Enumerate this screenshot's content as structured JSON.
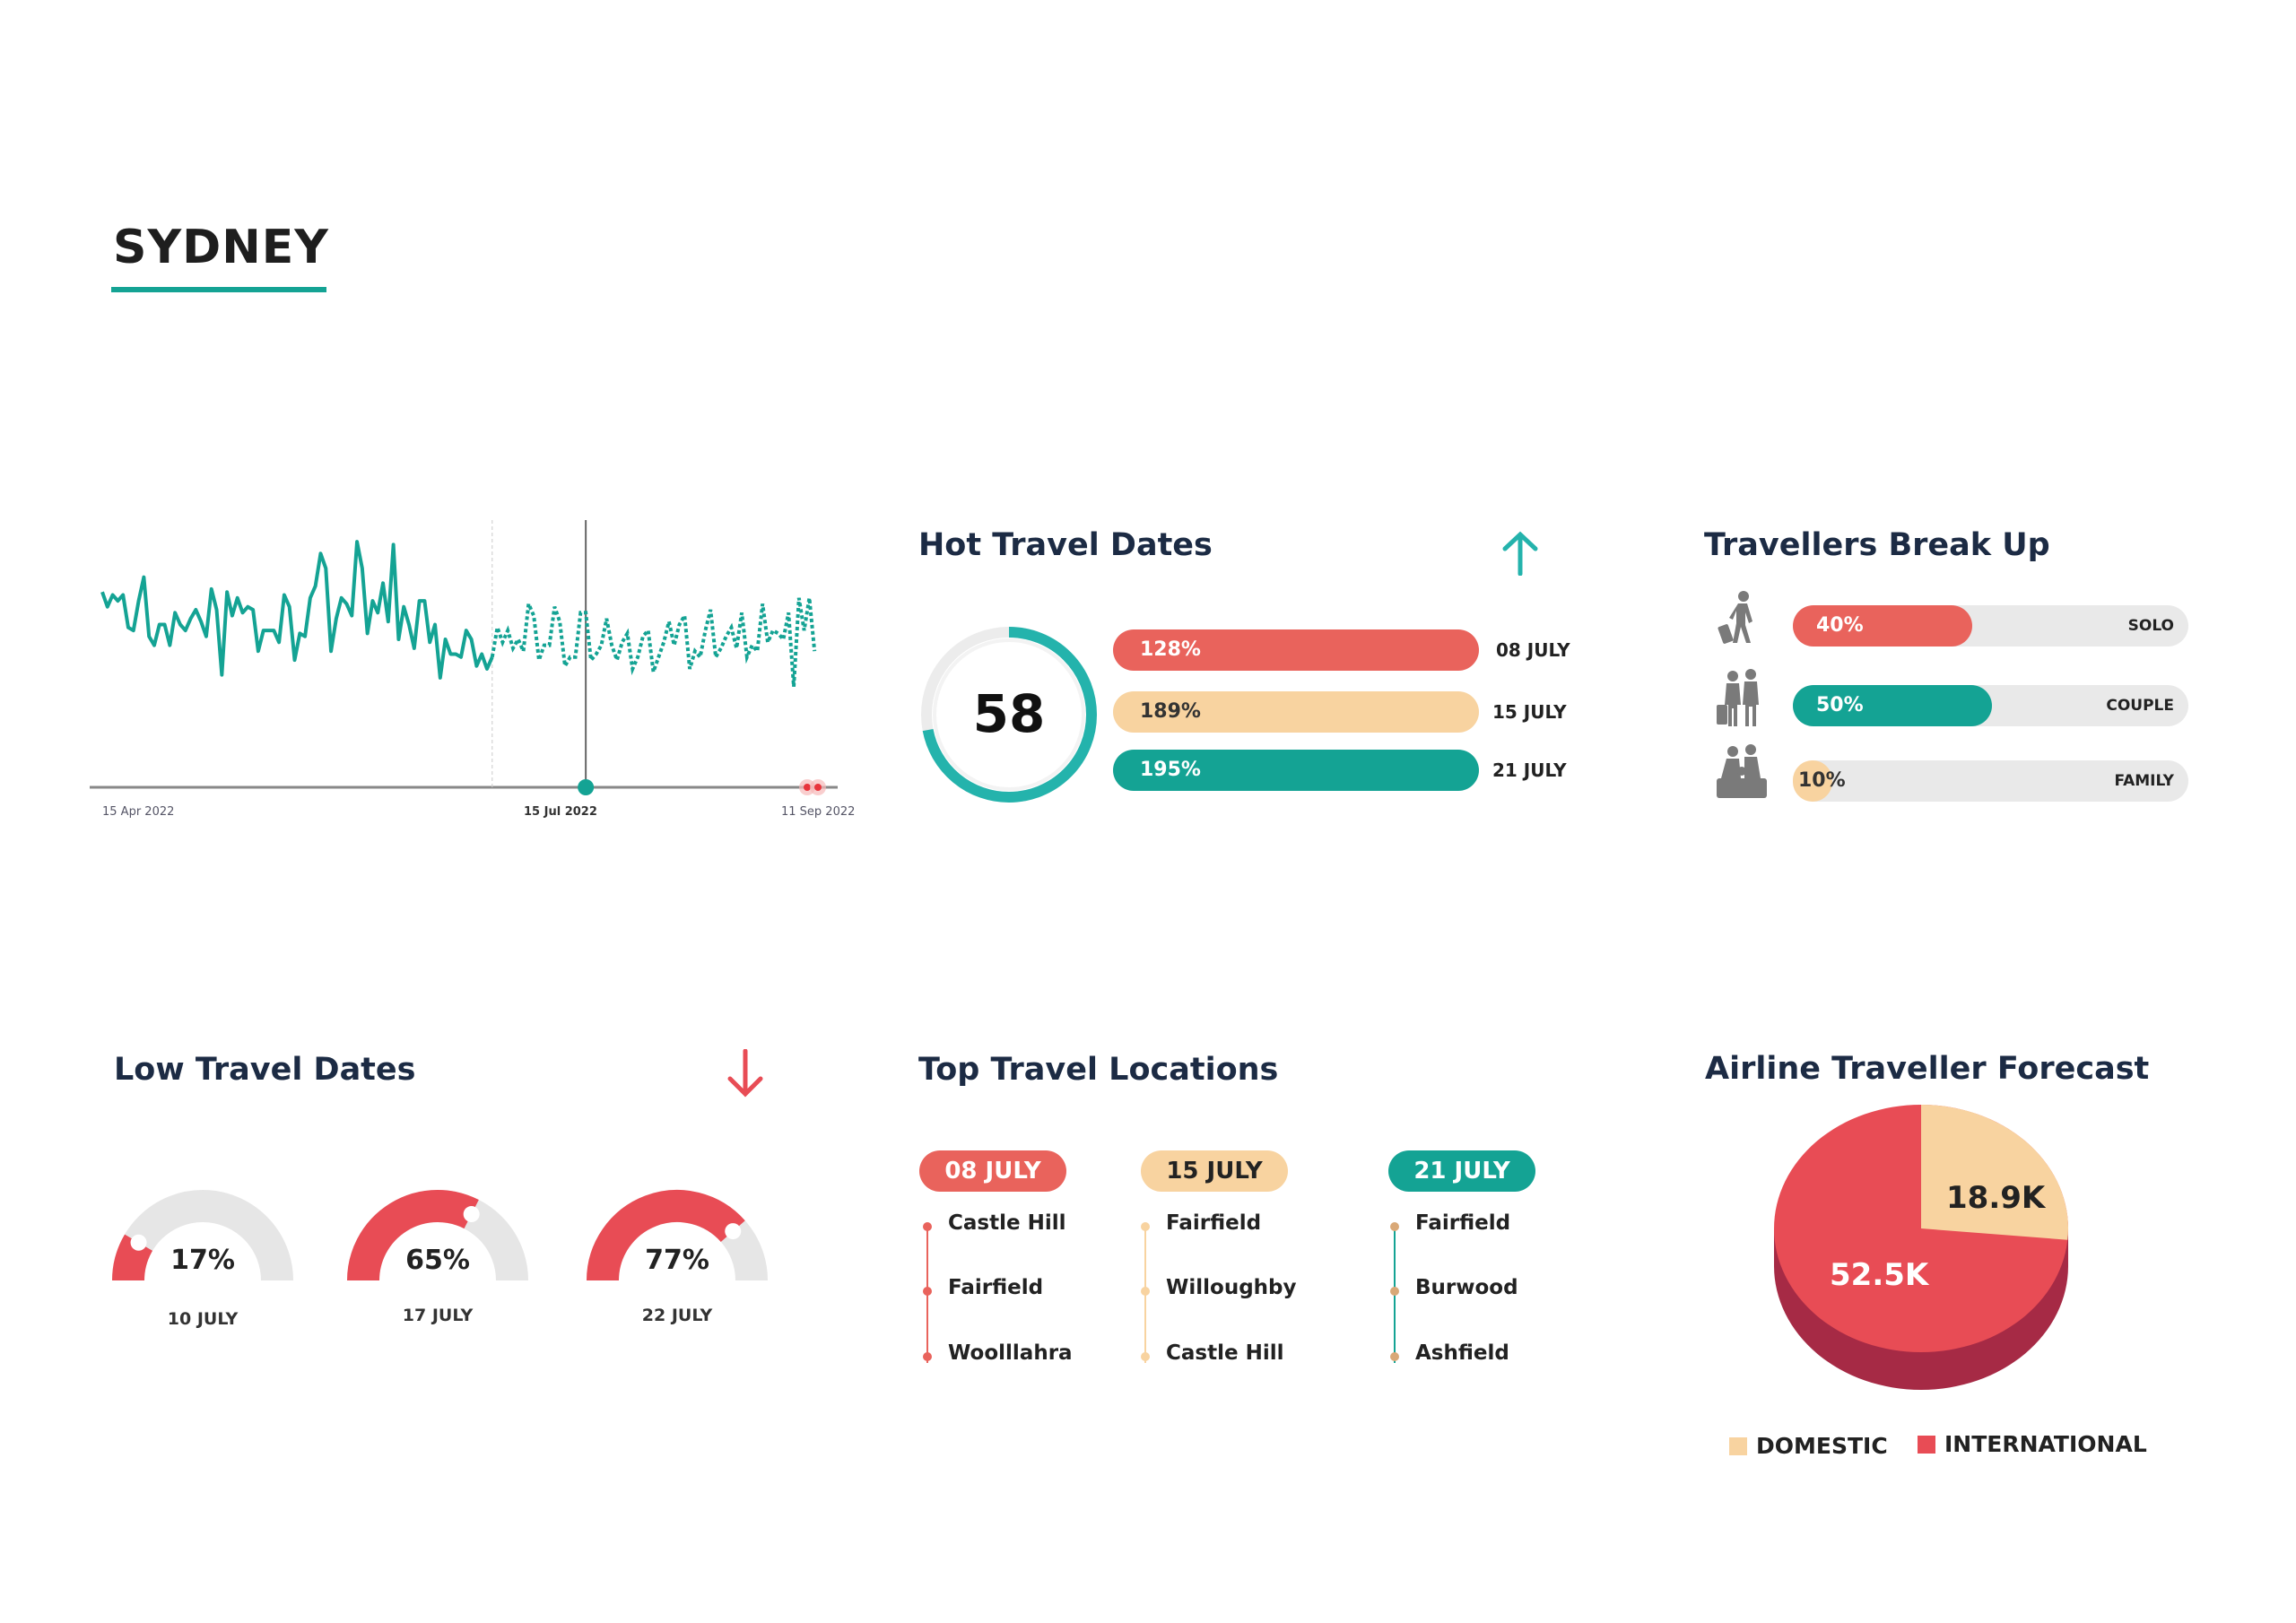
{
  "page": {
    "title": "SYDNEY"
  },
  "colors": {
    "teal": "#14a394",
    "red": "#e9635c",
    "peach": "#f8d3a0",
    "navy": "#1c2b44",
    "pie_red": "#e84c55",
    "pie_dark": "#a62a45",
    "track": "#e9e9e9"
  },
  "chart_data": [
    {
      "type": "line",
      "x_labels": [
        "15 Apr 2022",
        "15 Jul 2022",
        "11 Sep 2022"
      ],
      "highlight_label": "15 Jul 2022",
      "grid": false,
      "series": [
        {
          "style": "solid",
          "values": [
            66,
            61,
            65,
            63,
            65,
            54,
            53,
            63,
            71,
            51,
            48,
            55,
            55,
            48,
            59,
            55,
            53,
            57,
            60,
            56,
            51,
            67,
            60,
            38,
            66,
            58,
            64,
            59,
            61,
            60,
            46,
            53,
            53,
            53,
            49,
            65,
            61,
            43,
            52,
            51,
            64,
            68,
            79,
            74,
            46,
            57,
            64,
            62,
            58,
            83,
            74,
            52,
            63,
            59,
            69,
            56,
            82,
            50,
            61,
            55,
            47,
            63,
            63,
            49,
            55,
            37,
            50,
            45,
            45,
            44,
            53,
            50,
            41,
            45,
            40,
            44
          ]
        },
        {
          "style": "dashed",
          "values": [
            44,
            54,
            49,
            53,
            47,
            50,
            46,
            62,
            58,
            43,
            48,
            48,
            61,
            56,
            41,
            44,
            44,
            59,
            59,
            43,
            45,
            48,
            57,
            48,
            43,
            49,
            52,
            40,
            44,
            51,
            53,
            39,
            44,
            49,
            56,
            48,
            55,
            58,
            40,
            46,
            44,
            53,
            60,
            44,
            47,
            51,
            54,
            47,
            59,
            44,
            48,
            46,
            62,
            49,
            53,
            52,
            50,
            59,
            34,
            64,
            53,
            64,
            46
          ]
        }
      ]
    },
    {
      "type": "pie",
      "title": "Airline Traveller Forecast",
      "slices": [
        {
          "name": "DOMESTIC",
          "value": 18.9,
          "label": "18.9K",
          "color": "#f8d3a0"
        },
        {
          "name": "INTERNATIONAL",
          "value": 52.5,
          "label": "52.5K",
          "color": "#e84c55"
        }
      ],
      "legend": "bottom"
    }
  ],
  "hot": {
    "title": "Hot Travel Dates",
    "arrow_icon": "arrow-up-icon",
    "ring_value": "58",
    "ring_fill": 0.72,
    "bars": [
      {
        "pct": "128%",
        "date": "08 JULY",
        "color": "#e9635c"
      },
      {
        "pct": "189%",
        "date": "15 JULY",
        "color": "#f8d3a0"
      },
      {
        "pct": "195%",
        "date": "21 JULY",
        "color": "#14a394"
      }
    ]
  },
  "travellers": {
    "title": "Travellers Break Up",
    "items": [
      {
        "label": "SOLO",
        "pct": "40%",
        "fraction": 0.4,
        "color": "#e9635c",
        "icon": "solo-traveller-icon"
      },
      {
        "label": "COUPLE",
        "pct": "50%",
        "fraction": 0.5,
        "color": "#14a394",
        "icon": "couple-traveller-icon"
      },
      {
        "label": "FAMILY",
        "pct": "10%",
        "fraction": 0.1,
        "color": "#f8d3a0",
        "icon": "family-traveller-icon"
      }
    ]
  },
  "low": {
    "title": "Low Travel Dates",
    "arrow_icon": "arrow-down-icon",
    "gauges": [
      {
        "pct": "17%",
        "fraction": 0.17,
        "date": "10 JULY"
      },
      {
        "pct": "65%",
        "fraction": 0.65,
        "date": "17 JULY"
      },
      {
        "pct": "77%",
        "fraction": 0.77,
        "date": "22 JULY"
      }
    ]
  },
  "locations": {
    "title": "Top Travel Locations",
    "columns": [
      {
        "date": "08 JULY",
        "color": "#e9635c",
        "text_color": "#ffffff",
        "places": [
          "Castle Hill",
          "Fairfield",
          "Woolllahra"
        ]
      },
      {
        "date": "15 JULY",
        "color": "#f8d3a0",
        "text_color": "#222222",
        "places": [
          "Fairfield",
          "Willoughby",
          "Castle Hill"
        ]
      },
      {
        "date": "21 JULY",
        "color": "#14a394",
        "text_color": "#ffffff",
        "places": [
          "Fairfield",
          "Burwood",
          "Ashfield"
        ]
      }
    ]
  },
  "forecast": {
    "title": "Airline Traveller Forecast",
    "legend": [
      "DOMESTIC",
      "INTERNATIONAL"
    ]
  }
}
